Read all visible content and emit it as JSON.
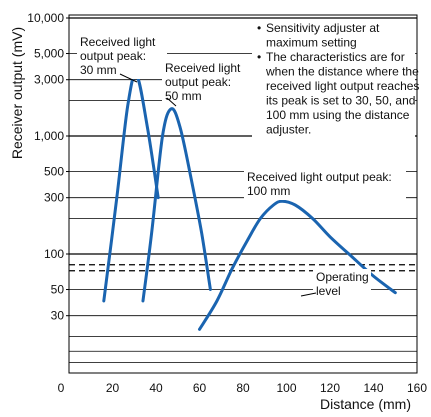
{
  "chart_data": {
    "type": "line",
    "xlabel": "Distance (mm)",
    "ylabel": "Receiver output (mV)",
    "xlim": [
      0,
      160
    ],
    "ylim": [
      10,
      10000
    ],
    "yscale": "log",
    "x_ticks": [
      "0",
      "20",
      "40",
      "60",
      "80",
      "100",
      "120",
      "140",
      "160"
    ],
    "y_ticks": [
      "10,000",
      "5,000",
      "3,000",
      "1,000",
      "500",
      "300",
      "100",
      "50",
      "30"
    ],
    "y_tick_values": [
      10000,
      5000,
      3000,
      1000,
      500,
      300,
      100,
      50,
      30
    ],
    "grid": true,
    "series_color": "#1a64b0",
    "series": [
      {
        "x": [
          16,
          22,
          27,
          31,
          36,
          41
        ],
        "y": [
          40,
          300,
          1800,
          3300,
          1200,
          300
        ]
      },
      {
        "x": [
          34,
          38,
          43,
          47,
          51,
          56,
          61,
          65
        ],
        "y": [
          40,
          150,
          1000,
          1700,
          1200,
          450,
          150,
          50
        ]
      },
      {
        "x": [
          60,
          68,
          75,
          82,
          88,
          94,
          98,
          104,
          112,
          120,
          130,
          140,
          150
        ],
        "y": [
          23,
          40,
          75,
          130,
          200,
          260,
          280,
          260,
          200,
          140,
          95,
          65,
          47
        ]
      }
    ],
    "annotations": [
      {
        "lines": [
          "Received light",
          "output peak:",
          "30 mm"
        ]
      },
      {
        "lines": [
          "Received light",
          "output peak:",
          "50 mm"
        ]
      },
      {
        "lines": [
          "Received light output peak:",
          "100 mm"
        ]
      },
      {
        "lines": [
          "Operating",
          "level"
        ]
      }
    ],
    "operating_level": 75,
    "notes": [
      {
        "bullet": "•",
        "lines": [
          "Sensitivity adjuster at",
          "maximum setting"
        ]
      },
      {
        "bullet": "•",
        "lines": [
          "The characteristics are for",
          "when the distance where the",
          "received light output reaches",
          "its peak is set to 30,  50, and",
          "100 mm using the distance",
          "adjuster."
        ]
      }
    ]
  }
}
